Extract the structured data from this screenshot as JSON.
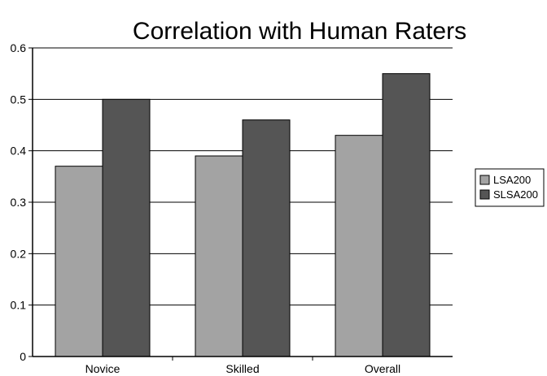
{
  "chart_data": {
    "type": "bar",
    "title": "Correlation with Human Raters",
    "xlabel": "",
    "ylabel": "",
    "categories": [
      "Novice",
      "Skilled",
      "Overall"
    ],
    "series": [
      {
        "name": "LSA200",
        "values": [
          0.37,
          0.39,
          0.43
        ],
        "color": "#a3a3a3"
      },
      {
        "name": "SLSA200",
        "values": [
          0.5,
          0.46,
          0.55
        ],
        "color": "#555555"
      }
    ],
    "ylim": [
      0,
      0.6
    ],
    "yticks": [
      "0",
      "0.1",
      "0.2",
      "0.3",
      "0.4",
      "0.5",
      "0.6"
    ],
    "grid": true,
    "legend_position": "right"
  }
}
